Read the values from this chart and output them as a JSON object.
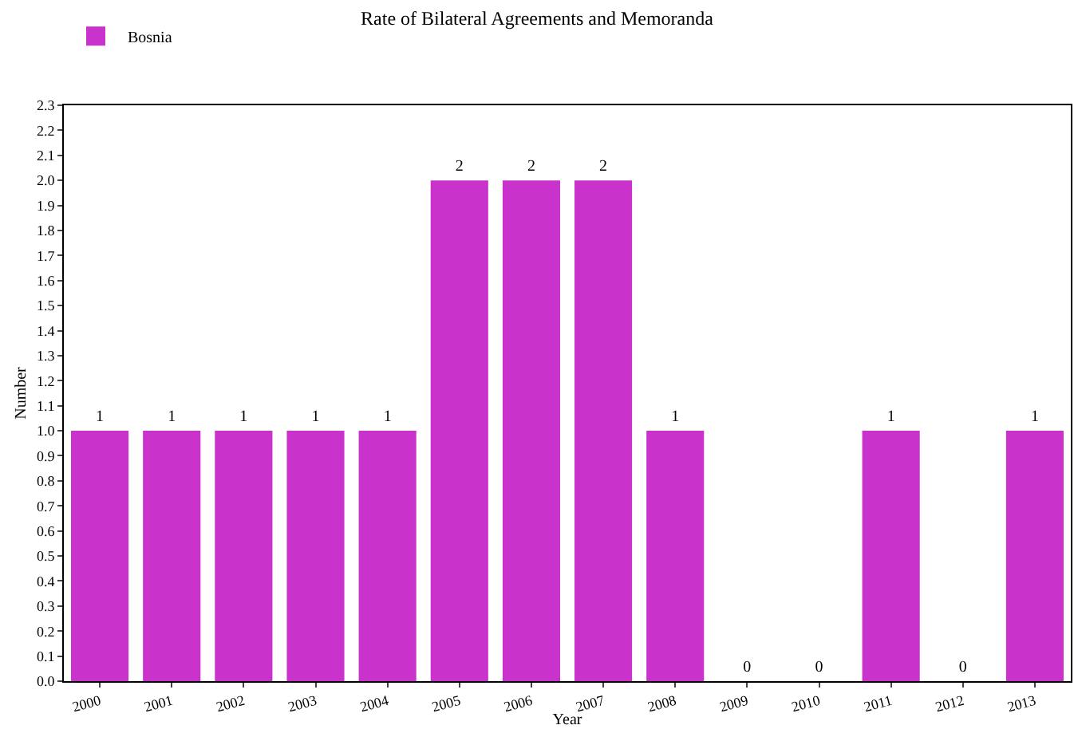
{
  "chart_data": {
    "type": "bar",
    "title": "Rate of Bilateral Agreements and Memoranda",
    "xlabel": "Year",
    "ylabel": "Number",
    "categories": [
      "2000",
      "2001",
      "2002",
      "2003",
      "2004",
      "2005",
      "2006",
      "2007",
      "2008",
      "2009",
      "2010",
      "2011",
      "2012",
      "2013"
    ],
    "series": [
      {
        "name": "Bosnia",
        "color": "#c933cc",
        "values": [
          1,
          1,
          1,
          1,
          1,
          2,
          2,
          2,
          1,
          0,
          0,
          1,
          0,
          1
        ]
      }
    ],
    "ylim": [
      0,
      2.3
    ],
    "yticks": [
      "0.0",
      "0.1",
      "0.2",
      "0.3",
      "0.4",
      "0.5",
      "0.6",
      "0.7",
      "0.8",
      "0.9",
      "1.0",
      "1.1",
      "1.2",
      "1.3",
      "1.4",
      "1.5",
      "1.6",
      "1.7",
      "1.8",
      "1.9",
      "2.0",
      "2.1",
      "2.2",
      "2.3"
    ],
    "data_labels": true,
    "grid": false,
    "legend": "top left"
  }
}
